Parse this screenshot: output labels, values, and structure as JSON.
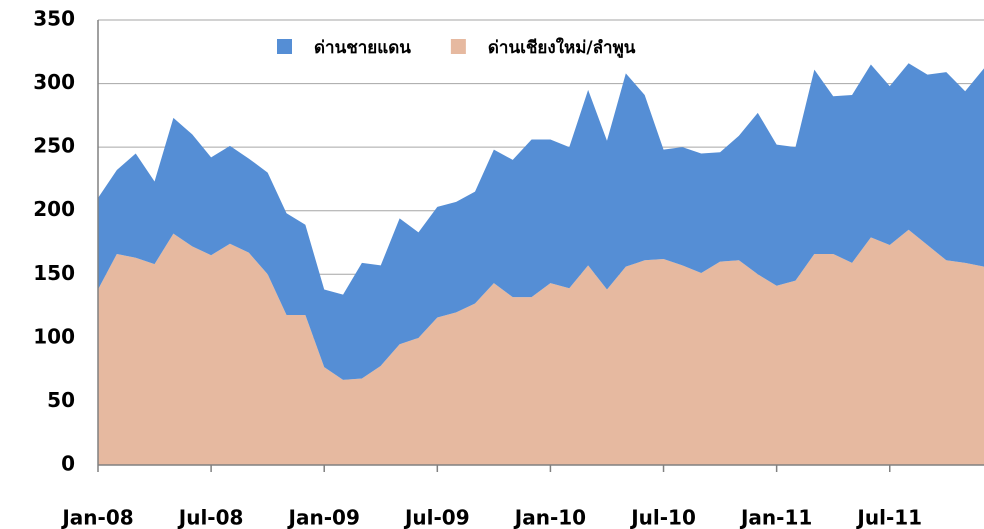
{
  "chart_data": {
    "type": "stacked_area",
    "categories": [
      "Jan-08",
      null,
      null,
      null,
      null,
      null,
      "Jul-08",
      null,
      null,
      null,
      null,
      null,
      "Jan-09",
      null,
      null,
      null,
      null,
      null,
      "Jul-09",
      null,
      null,
      null,
      null,
      null,
      "Jan-10",
      null,
      null,
      null,
      null,
      null,
      "Jul-10",
      null,
      null,
      null,
      null,
      null,
      "Jan-11",
      null,
      null,
      null,
      null,
      null,
      "Jul-11",
      null,
      null,
      null,
      null,
      null
    ],
    "series": [
      {
        "name": "ด่านชายแดน",
        "color": "#558ed5",
        "values": [
          72,
          66,
          82,
          65,
          91,
          88,
          77,
          77,
          74,
          80,
          80,
          71,
          61,
          67,
          91,
          79,
          99,
          83,
          87,
          87,
          88,
          105,
          108,
          124,
          113,
          111,
          138,
          117,
          152,
          130,
          86,
          93,
          94,
          86,
          98,
          127,
          111,
          105,
          145,
          124,
          132,
          136,
          125,
          131,
          134,
          148,
          135,
          156
        ]
      },
      {
        "name": "ด่านเชียงใหม่/ลำพูน",
        "color": "#e6b9a0",
        "values": [
          138,
          166,
          163,
          158,
          182,
          172,
          165,
          174,
          167,
          150,
          118,
          118,
          77,
          67,
          68,
          78,
          95,
          100,
          116,
          120,
          127,
          143,
          132,
          132,
          143,
          139,
          157,
          138,
          156,
          161,
          162,
          157,
          151,
          160,
          161,
          150,
          141,
          145,
          166,
          166,
          159,
          179,
          173,
          185,
          173,
          161,
          159,
          156
        ]
      }
    ],
    "ylim": [
      0,
      350
    ],
    "yticks": [
      0,
      50,
      100,
      150,
      200,
      250,
      300,
      350
    ],
    "grid": true
  }
}
